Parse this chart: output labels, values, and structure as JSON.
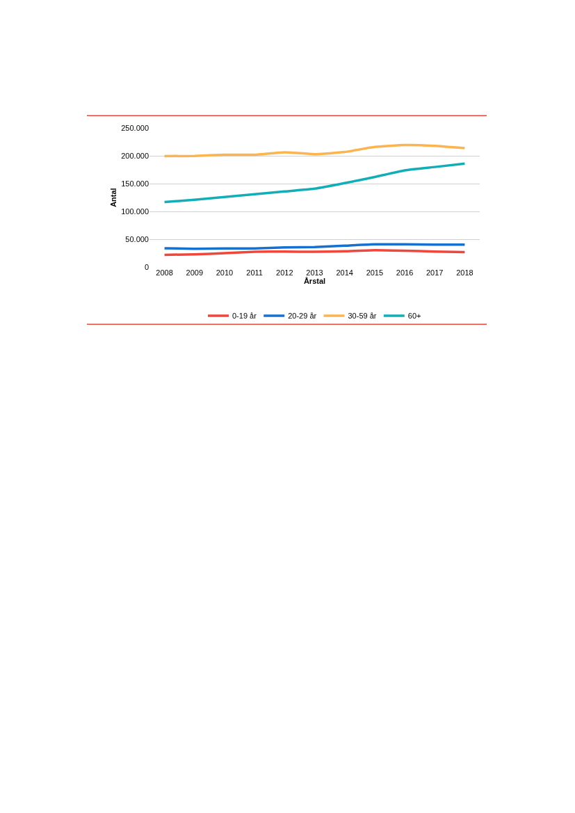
{
  "chart_data": {
    "type": "line",
    "xlabel": "Årstal",
    "ylabel": "Antal",
    "categories": [
      "2008",
      "2009",
      "2010",
      "2011",
      "2012",
      "2013",
      "2014",
      "2015",
      "2016",
      "2017",
      "2018"
    ],
    "series": [
      {
        "name": "0-19 år",
        "color": "#f0463c",
        "values": [
          22000,
          23000,
          25000,
          27500,
          28000,
          27500,
          28500,
          30500,
          29500,
          28000,
          27000
        ]
      },
      {
        "name": "20-29 år",
        "color": "#1570d0",
        "values": [
          34000,
          33000,
          33500,
          33500,
          35500,
          36000,
          38500,
          41000,
          41000,
          40500,
          40500
        ]
      },
      {
        "name": "30-59 år",
        "color": "#fbb450",
        "values": [
          199500,
          200000,
          202000,
          202000,
          206500,
          203000,
          207000,
          216000,
          219500,
          218000,
          214000
        ]
      },
      {
        "name": "60+",
        "color": "#12aeb8",
        "values": [
          117000,
          121000,
          126000,
          131000,
          136000,
          141000,
          151000,
          162000,
          174000,
          180000,
          186000
        ]
      }
    ],
    "ylim": [
      0,
      250000
    ],
    "yticks": [
      {
        "value": 0,
        "label": "0"
      },
      {
        "value": 50000,
        "label": "50.000"
      },
      {
        "value": 100000,
        "label": "100.000"
      },
      {
        "value": 150000,
        "label": "150.000"
      },
      {
        "value": 200000,
        "label": "200.000"
      },
      {
        "value": 250000,
        "label": "250.000"
      }
    ],
    "grid": "y",
    "legend": "bottom",
    "marker": "none",
    "line_style": "solid"
  }
}
